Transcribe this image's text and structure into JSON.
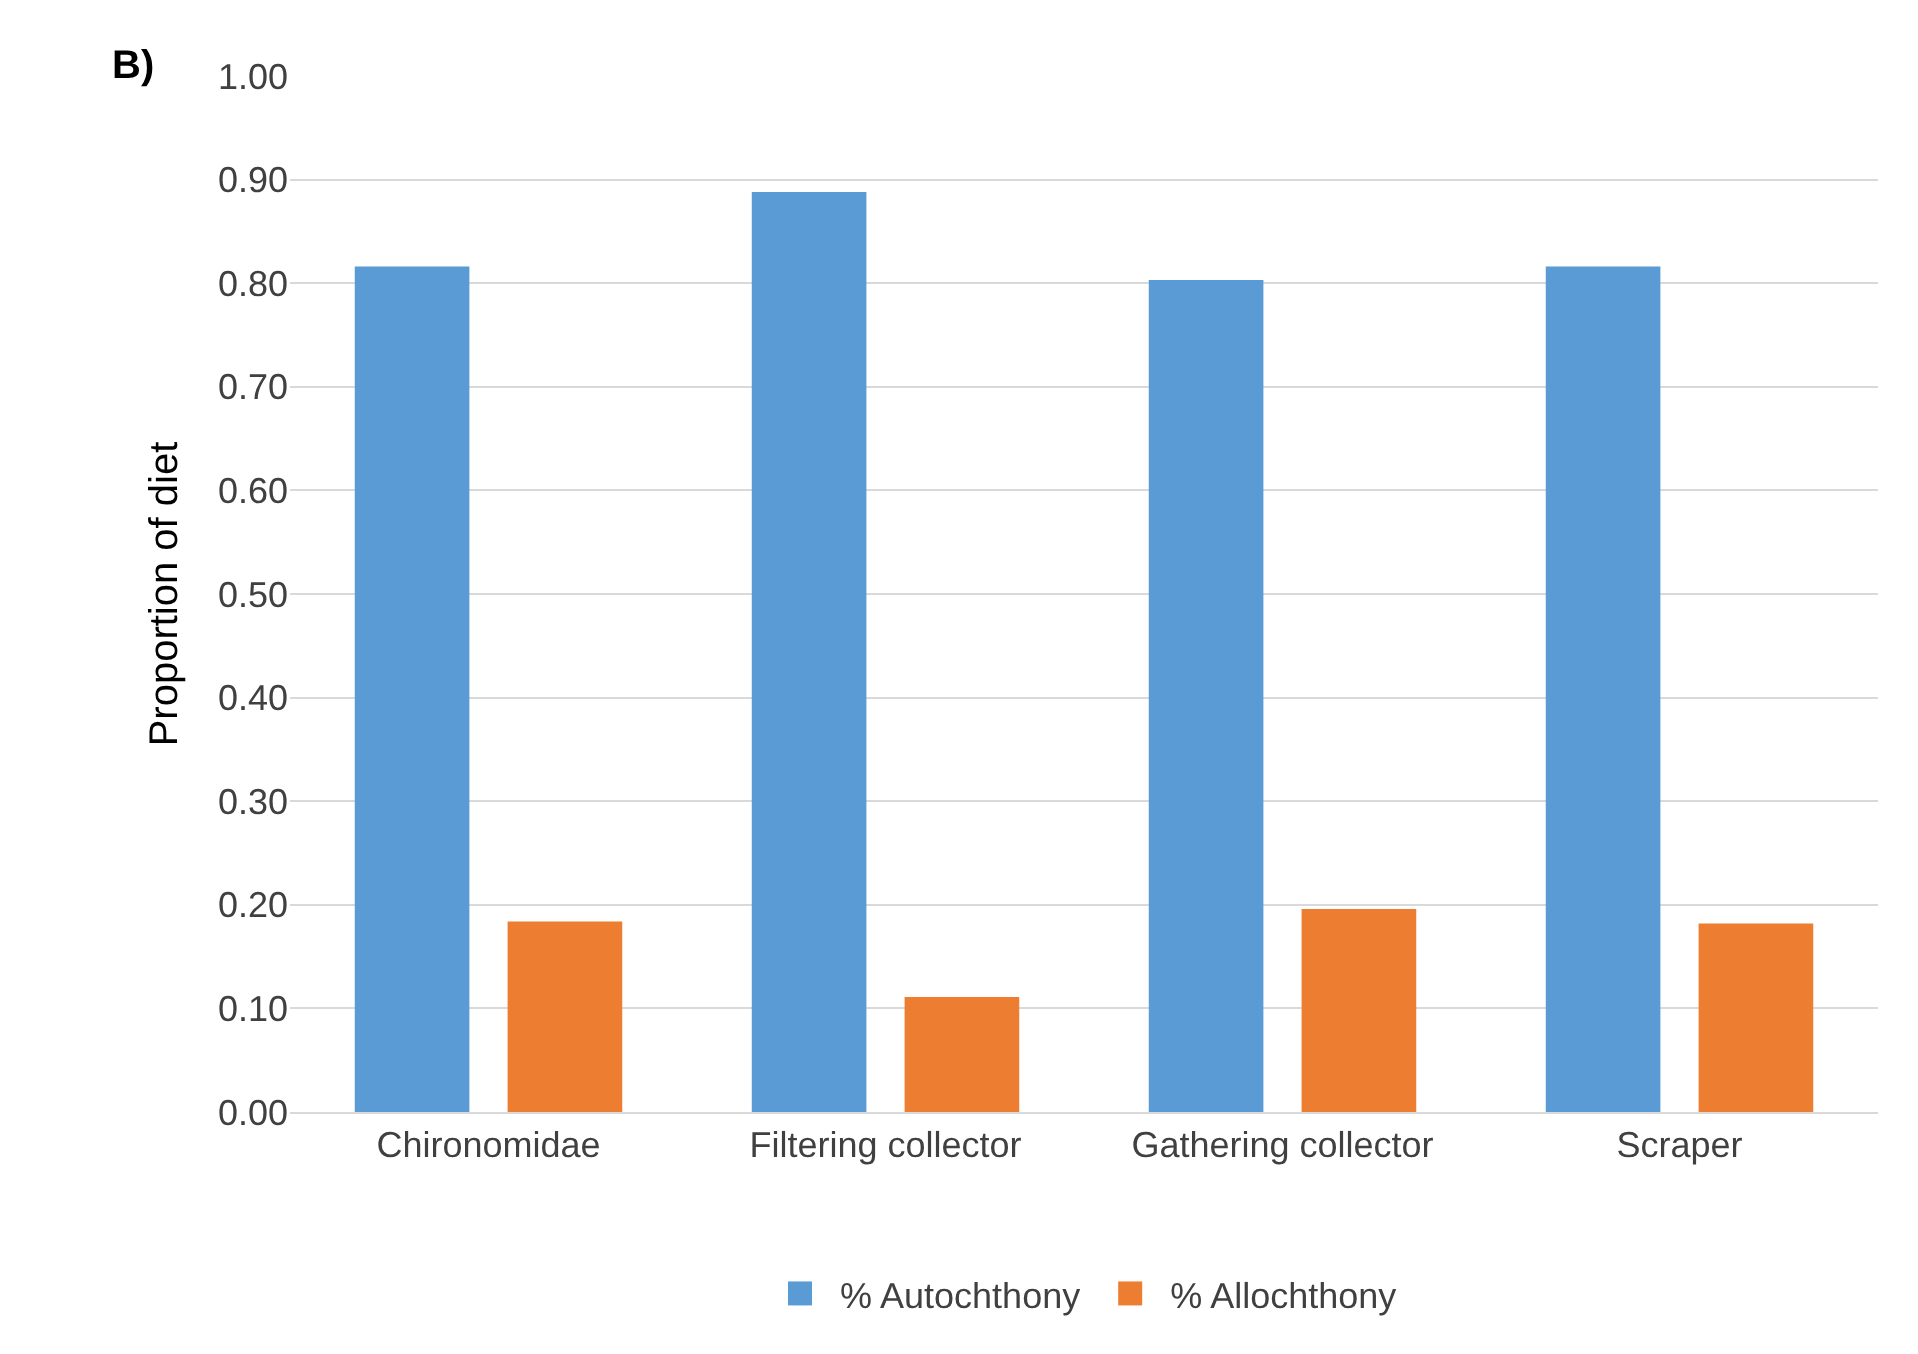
{
  "chart_data": {
    "type": "bar",
    "annotations": [
      "B)"
    ],
    "ylabel": "Proportion of diet",
    "categories": [
      "Chironomidae",
      "Filtering collector",
      "Gathering collector",
      "Scraper"
    ],
    "series": [
      {
        "name": "% Autochthony",
        "color": "#5b9bd5",
        "values": [
          0.816,
          0.888,
          0.803,
          0.816
        ]
      },
      {
        "name": "% Allochthony",
        "color": "#ed7d31",
        "values": [
          0.184,
          0.111,
          0.196,
          0.182
        ]
      }
    ],
    "ylim": [
      0,
      1
    ],
    "yticks": [
      {
        "value": 0,
        "label": "0.00"
      },
      {
        "value": 0.1,
        "label": "0.10"
      },
      {
        "value": 0.2,
        "label": "0.20"
      },
      {
        "value": 0.3,
        "label": "0.30"
      },
      {
        "value": 0.4,
        "label": "0.40"
      },
      {
        "value": 0.5,
        "label": "0.50"
      },
      {
        "value": 0.6,
        "label": "0.60"
      },
      {
        "value": 0.7,
        "label": "0.70"
      },
      {
        "value": 0.8,
        "label": "0.80"
      },
      {
        "value": 0.9,
        "label": "0.90"
      },
      {
        "value": 1,
        "label": "1.00"
      }
    ],
    "grid": "y",
    "legend": "bottom"
  }
}
